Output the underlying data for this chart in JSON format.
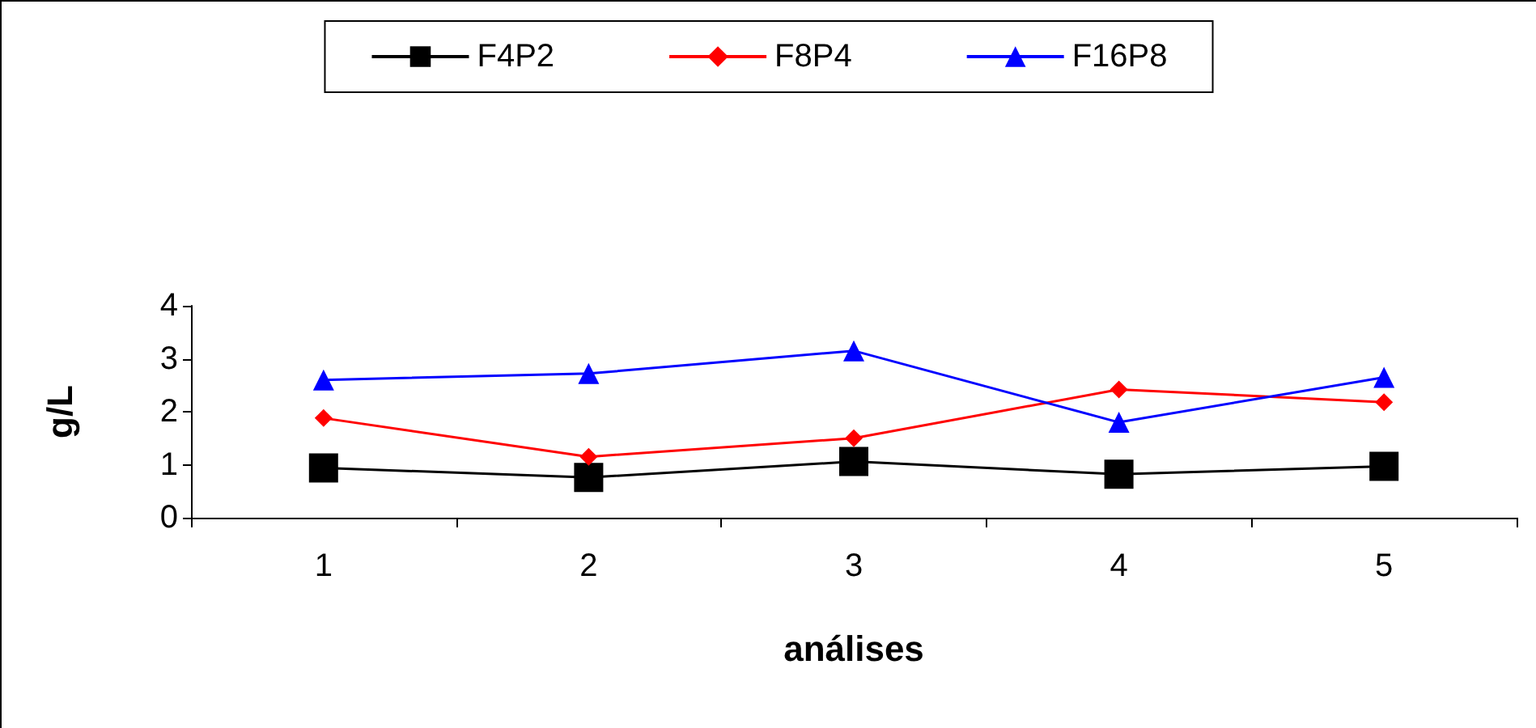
{
  "chart_data": {
    "type": "line",
    "xlabel": "análises",
    "ylabel": "g/L",
    "categories": [
      "1",
      "2",
      "3",
      "4",
      "5"
    ],
    "series": [
      {
        "name": "F4P2",
        "color": "#000000",
        "marker": "square",
        "values": [
          0.94,
          0.76,
          1.06,
          0.82,
          0.97
        ]
      },
      {
        "name": "F8P4",
        "color": "#ff0000",
        "marker": "diamond",
        "values": [
          1.88,
          1.15,
          1.5,
          2.42,
          2.18
        ]
      },
      {
        "name": "F16P8",
        "color": "#0000ff",
        "marker": "triangle",
        "values": [
          2.6,
          2.72,
          3.15,
          1.8,
          2.65
        ]
      }
    ],
    "ylim": [
      0,
      4
    ],
    "yticks": [
      0,
      1,
      2,
      3,
      4
    ],
    "grid": false,
    "legend": "top"
  }
}
